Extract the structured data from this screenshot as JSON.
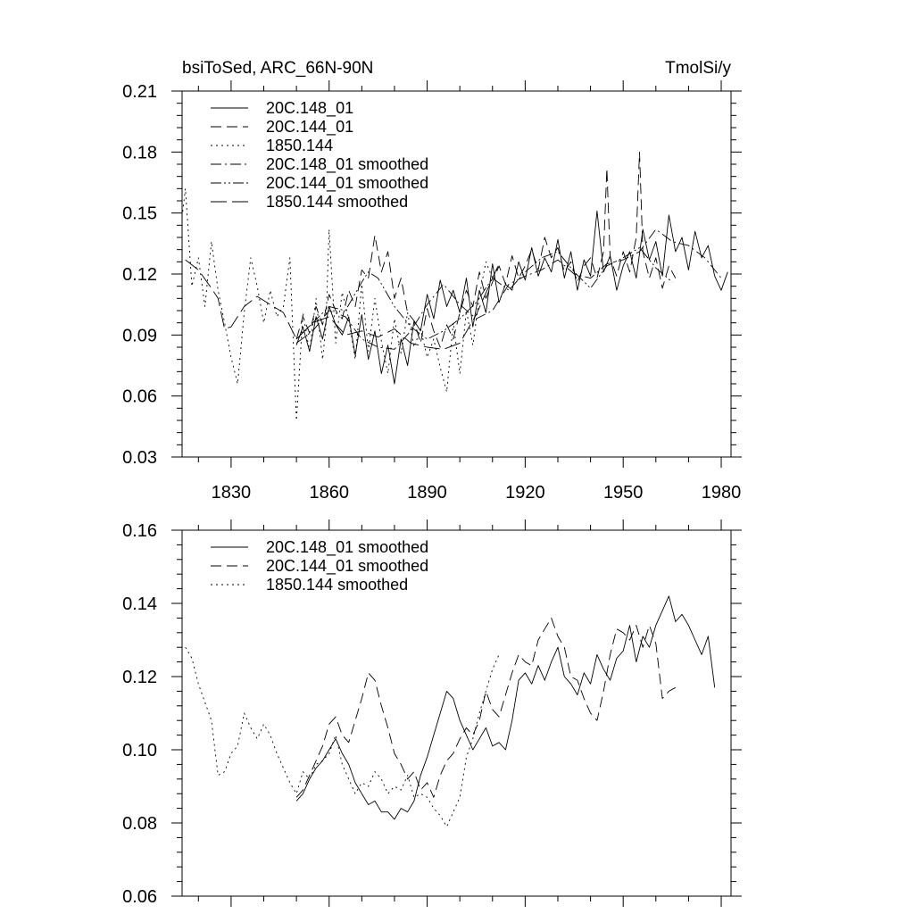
{
  "chart_data": [
    {
      "type": "line",
      "title_left": "bsiToSed, ARC_66N-90N",
      "title_right": "TmolSi/y",
      "xlim": [
        1815,
        1983
      ],
      "ylim": [
        0.03,
        0.21
      ],
      "x_ticks": [
        1830,
        1860,
        1890,
        1920,
        1950,
        1980
      ],
      "x_tick_labels": [
        "1830",
        "1860",
        "1890",
        "1920",
        "1950",
        "1980"
      ],
      "y_ticks": [
        0.03,
        0.06,
        0.09,
        0.12,
        0.15,
        0.18,
        0.21
      ],
      "y_tick_labels": [
        "0.03",
        "0.06",
        "0.09",
        "0.12",
        "0.15",
        "0.18",
        "0.21"
      ],
      "legend": [
        {
          "label": "20C.148_01",
          "dash": "solid"
        },
        {
          "label": "20C.144_01",
          "dash": "dashed"
        },
        {
          "label": "1850.144",
          "dash": "dotted"
        },
        {
          "label": "20C.148_01 smoothed",
          "dash": "dashdot"
        },
        {
          "label": "20C.144_01 smoothed",
          "dash": "dashdotdot"
        },
        {
          "label": "1850.144 smoothed",
          "dash": "longdash"
        }
      ],
      "series": [
        {
          "name": "20C.148_01",
          "dash": "solid",
          "x": [
            1850,
            1852,
            1854,
            1856,
            1858,
            1860,
            1862,
            1864,
            1866,
            1868,
            1870,
            1872,
            1874,
            1876,
            1878,
            1880,
            1882,
            1884,
            1886,
            1888,
            1890,
            1892,
            1894,
            1896,
            1898,
            1900,
            1902,
            1904,
            1906,
            1908,
            1910,
            1912,
            1914,
            1916,
            1918,
            1920,
            1922,
            1924,
            1926,
            1928,
            1930,
            1932,
            1934,
            1936,
            1938,
            1940,
            1942,
            1944,
            1946,
            1948,
            1950,
            1952,
            1954,
            1956,
            1958,
            1960,
            1962,
            1964,
            1966,
            1968,
            1970,
            1972,
            1974,
            1976,
            1978,
            1980,
            1982
          ],
          "values": [
            0.085,
            0.094,
            0.082,
            0.099,
            0.088,
            0.104,
            0.095,
            0.09,
            0.099,
            0.08,
            0.1,
            0.078,
            0.092,
            0.071,
            0.085,
            0.066,
            0.088,
            0.075,
            0.097,
            0.092,
            0.11,
            0.098,
            0.117,
            0.104,
            0.112,
            0.101,
            0.118,
            0.094,
            0.112,
            0.101,
            0.125,
            0.106,
            0.115,
            0.112,
            0.126,
            0.117,
            0.133,
            0.119,
            0.128,
            0.121,
            0.137,
            0.118,
            0.131,
            0.112,
            0.127,
            0.119,
            0.151,
            0.121,
            0.129,
            0.112,
            0.124,
            0.131,
            0.118,
            0.142,
            0.127,
            0.136,
            0.119,
            0.149,
            0.131,
            0.138,
            0.122,
            0.141,
            0.128,
            0.134,
            0.119,
            0.112,
            0.121
          ]
        },
        {
          "name": "20C.144_01",
          "dash": "dashed",
          "x": [
            1850,
            1852,
            1854,
            1856,
            1858,
            1860,
            1862,
            1864,
            1866,
            1868,
            1870,
            1872,
            1874,
            1876,
            1878,
            1880,
            1882,
            1884,
            1886,
            1888,
            1890,
            1892,
            1894,
            1896,
            1898,
            1900,
            1902,
            1904,
            1906,
            1908,
            1910,
            1912,
            1914,
            1916,
            1918,
            1920,
            1922,
            1924,
            1926,
            1928,
            1930,
            1932,
            1934,
            1936,
            1938,
            1940,
            1942,
            1944,
            1945,
            1946,
            1948,
            1950,
            1952,
            1954,
            1955,
            1956,
            1958,
            1960,
            1962,
            1964,
            1966
          ],
          "values": [
            0.088,
            0.099,
            0.091,
            0.104,
            0.095,
            0.11,
            0.102,
            0.098,
            0.112,
            0.104,
            0.122,
            0.118,
            0.139,
            0.121,
            0.131,
            0.108,
            0.118,
            0.101,
            0.097,
            0.086,
            0.103,
            0.092,
            0.084,
            0.095,
            0.088,
            0.101,
            0.112,
            0.104,
            0.121,
            0.108,
            0.116,
            0.124,
            0.115,
            0.129,
            0.118,
            0.124,
            0.132,
            0.122,
            0.138,
            0.128,
            0.133,
            0.121,
            0.126,
            0.116,
            0.124,
            0.128,
            0.118,
            0.131,
            0.172,
            0.128,
            0.119,
            0.131,
            0.121,
            0.138,
            0.18,
            0.131,
            0.118,
            0.128,
            0.113,
            0.124,
            0.118
          ]
        },
        {
          "name": "1850.144",
          "dash": "dotted",
          "x": [
            1815,
            1816,
            1818,
            1820,
            1822,
            1824,
            1826,
            1828,
            1830,
            1832,
            1834,
            1836,
            1838,
            1840,
            1842,
            1844,
            1846,
            1848,
            1850,
            1852,
            1854,
            1856,
            1858,
            1859,
            1860,
            1862,
            1864,
            1866,
            1868,
            1870,
            1872,
            1874,
            1876,
            1878,
            1880,
            1882,
            1884,
            1886,
            1888,
            1890,
            1892,
            1894,
            1896,
            1898,
            1900,
            1902,
            1904,
            1906,
            1908,
            1910,
            1912
          ],
          "values": [
            0.148,
            0.162,
            0.114,
            0.128,
            0.104,
            0.136,
            0.112,
            0.096,
            0.079,
            0.066,
            0.101,
            0.128,
            0.114,
            0.096,
            0.112,
            0.099,
            0.104,
            0.128,
            0.048,
            0.101,
            0.082,
            0.108,
            0.078,
            0.094,
            0.142,
            0.086,
            0.111,
            0.098,
            0.078,
            0.115,
            0.082,
            0.108,
            0.087,
            0.071,
            0.098,
            0.081,
            0.101,
            0.084,
            0.093,
            0.079,
            0.088,
            0.074,
            0.062,
            0.096,
            0.071,
            0.102,
            0.085,
            0.109,
            0.126,
            0.118,
            0.124
          ]
        },
        {
          "name": "20C.148_01 smoothed",
          "dash": "dashdot",
          "x": [
            1850,
            1855,
            1860,
            1865,
            1870,
            1875,
            1880,
            1885,
            1890,
            1895,
            1900,
            1905,
            1910,
            1915,
            1920,
            1925,
            1930,
            1935,
            1940,
            1945,
            1950,
            1955,
            1960,
            1965,
            1970,
            1975,
            1980
          ],
          "values": [
            0.086,
            0.092,
            0.102,
            0.099,
            0.088,
            0.084,
            0.083,
            0.092,
            0.105,
            0.115,
            0.105,
            0.098,
            0.102,
            0.115,
            0.119,
            0.122,
            0.127,
            0.12,
            0.118,
            0.125,
            0.127,
            0.131,
            0.142,
            0.136,
            0.134,
            0.128,
            0.118
          ]
        },
        {
          "name": "20C.144_01 smoothed",
          "dash": "dashdotdot",
          "x": [
            1850,
            1855,
            1860,
            1865,
            1870,
            1872,
            1875,
            1880,
            1885,
            1890,
            1895,
            1900,
            1905,
            1910,
            1915,
            1920,
            1925,
            1930,
            1935,
            1940,
            1945,
            1950,
            1955,
            1960,
            1965
          ],
          "values": [
            0.088,
            0.096,
            0.104,
            0.102,
            0.116,
            0.121,
            0.118,
            0.104,
            0.094,
            0.088,
            0.092,
            0.098,
            0.106,
            0.118,
            0.112,
            0.121,
            0.128,
            0.131,
            0.121,
            0.113,
            0.124,
            0.128,
            0.133,
            0.123,
            0.116
          ]
        },
        {
          "name": "1850.144 smoothed",
          "dash": "longdash",
          "x": [
            1816,
            1820,
            1824,
            1826,
            1828,
            1830,
            1834,
            1838,
            1842,
            1846,
            1850,
            1855,
            1860,
            1865,
            1870,
            1875,
            1880,
            1885,
            1890,
            1895,
            1900,
            1905,
            1910,
            1912
          ],
          "values": [
            0.127,
            0.122,
            0.113,
            0.108,
            0.093,
            0.094,
            0.104,
            0.109,
            0.105,
            0.101,
            0.088,
            0.096,
            0.099,
            0.09,
            0.092,
            0.089,
            0.093,
            0.086,
            0.084,
            0.083,
            0.086,
            0.1,
            0.118,
            0.125
          ]
        }
      ]
    },
    {
      "type": "line",
      "xlim": [
        1815,
        1983
      ],
      "ylim": [
        0.06,
        0.16
      ],
      "x_ticks": [
        1830,
        1860,
        1890,
        1920,
        1950,
        1980
      ],
      "y_ticks": [
        0.06,
        0.08,
        0.1,
        0.12,
        0.14,
        0.16
      ],
      "y_tick_labels": [
        "0.06",
        "0.08",
        "0.10",
        "0.12",
        "0.14",
        "0.16"
      ],
      "legend": [
        {
          "label": "20C.148_01 smoothed",
          "dash": "solid"
        },
        {
          "label": "20C.144_01 smoothed",
          "dash": "dashed"
        },
        {
          "label": "1850.144 smoothed",
          "dash": "dotted"
        }
      ],
      "series": [
        {
          "name": "20C.148_01 smoothed",
          "dash": "solid",
          "x": [
            1850,
            1852,
            1854,
            1856,
            1858,
            1860,
            1862,
            1864,
            1866,
            1868,
            1870,
            1872,
            1874,
            1876,
            1878,
            1880,
            1882,
            1884,
            1886,
            1888,
            1890,
            1892,
            1894,
            1896,
            1898,
            1900,
            1902,
            1904,
            1906,
            1908,
            1910,
            1912,
            1914,
            1916,
            1918,
            1920,
            1922,
            1924,
            1926,
            1928,
            1930,
            1932,
            1934,
            1936,
            1938,
            1940,
            1942,
            1944,
            1946,
            1948,
            1950,
            1952,
            1954,
            1956,
            1958,
            1960,
            1962,
            1964,
            1966,
            1968,
            1970,
            1972,
            1974,
            1976,
            1978
          ],
          "values": [
            0.086,
            0.088,
            0.092,
            0.095,
            0.097,
            0.1,
            0.103,
            0.099,
            0.096,
            0.091,
            0.088,
            0.085,
            0.086,
            0.083,
            0.083,
            0.081,
            0.084,
            0.083,
            0.086,
            0.093,
            0.098,
            0.104,
            0.11,
            0.116,
            0.114,
            0.108,
            0.104,
            0.1,
            0.103,
            0.106,
            0.101,
            0.102,
            0.1,
            0.108,
            0.119,
            0.121,
            0.118,
            0.123,
            0.119,
            0.124,
            0.128,
            0.12,
            0.118,
            0.115,
            0.121,
            0.118,
            0.126,
            0.122,
            0.119,
            0.125,
            0.127,
            0.134,
            0.124,
            0.131,
            0.128,
            0.134,
            0.138,
            0.142,
            0.135,
            0.137,
            0.134,
            0.13,
            0.126,
            0.131,
            0.117
          ]
        },
        {
          "name": "20C.144_01 smoothed",
          "dash": "dashed",
          "x": [
            1850,
            1852,
            1854,
            1856,
            1858,
            1860,
            1862,
            1864,
            1866,
            1868,
            1870,
            1872,
            1874,
            1876,
            1878,
            1880,
            1882,
            1884,
            1886,
            1888,
            1890,
            1892,
            1894,
            1896,
            1898,
            1900,
            1902,
            1904,
            1906,
            1908,
            1910,
            1912,
            1914,
            1916,
            1918,
            1920,
            1922,
            1924,
            1926,
            1928,
            1930,
            1932,
            1934,
            1936,
            1938,
            1940,
            1942,
            1944,
            1946,
            1948,
            1950,
            1952,
            1954,
            1956,
            1958,
            1960,
            1962,
            1964,
            1966
          ],
          "values": [
            0.087,
            0.089,
            0.093,
            0.097,
            0.101,
            0.107,
            0.109,
            0.104,
            0.102,
            0.108,
            0.114,
            0.121,
            0.119,
            0.112,
            0.106,
            0.099,
            0.096,
            0.092,
            0.094,
            0.089,
            0.091,
            0.087,
            0.093,
            0.097,
            0.099,
            0.103,
            0.106,
            0.104,
            0.108,
            0.116,
            0.111,
            0.109,
            0.115,
            0.121,
            0.126,
            0.124,
            0.123,
            0.13,
            0.133,
            0.136,
            0.131,
            0.128,
            0.12,
            0.119,
            0.114,
            0.11,
            0.108,
            0.116,
            0.126,
            0.133,
            0.132,
            0.13,
            0.134,
            0.128,
            0.134,
            0.129,
            0.114,
            0.116,
            0.117
          ]
        },
        {
          "name": "1850.144 smoothed",
          "dash": "dotted",
          "x": [
            1816,
            1818,
            1820,
            1822,
            1824,
            1826,
            1828,
            1830,
            1832,
            1834,
            1836,
            1838,
            1840,
            1842,
            1844,
            1846,
            1848,
            1850,
            1852,
            1854,
            1856,
            1858,
            1860,
            1862,
            1864,
            1866,
            1868,
            1870,
            1872,
            1874,
            1876,
            1878,
            1880,
            1882,
            1884,
            1886,
            1888,
            1890,
            1892,
            1894,
            1896,
            1898,
            1900,
            1902,
            1904,
            1906,
            1908,
            1910,
            1912
          ],
          "values": [
            0.128,
            0.125,
            0.118,
            0.113,
            0.108,
            0.093,
            0.094,
            0.099,
            0.101,
            0.11,
            0.106,
            0.103,
            0.107,
            0.104,
            0.099,
            0.095,
            0.091,
            0.088,
            0.094,
            0.092,
            0.096,
            0.097,
            0.099,
            0.104,
            0.096,
            0.092,
            0.088,
            0.091,
            0.09,
            0.094,
            0.092,
            0.088,
            0.09,
            0.089,
            0.093,
            0.087,
            0.088,
            0.087,
            0.084,
            0.082,
            0.079,
            0.083,
            0.087,
            0.098,
            0.103,
            0.11,
            0.116,
            0.122,
            0.126
          ]
        }
      ]
    }
  ]
}
